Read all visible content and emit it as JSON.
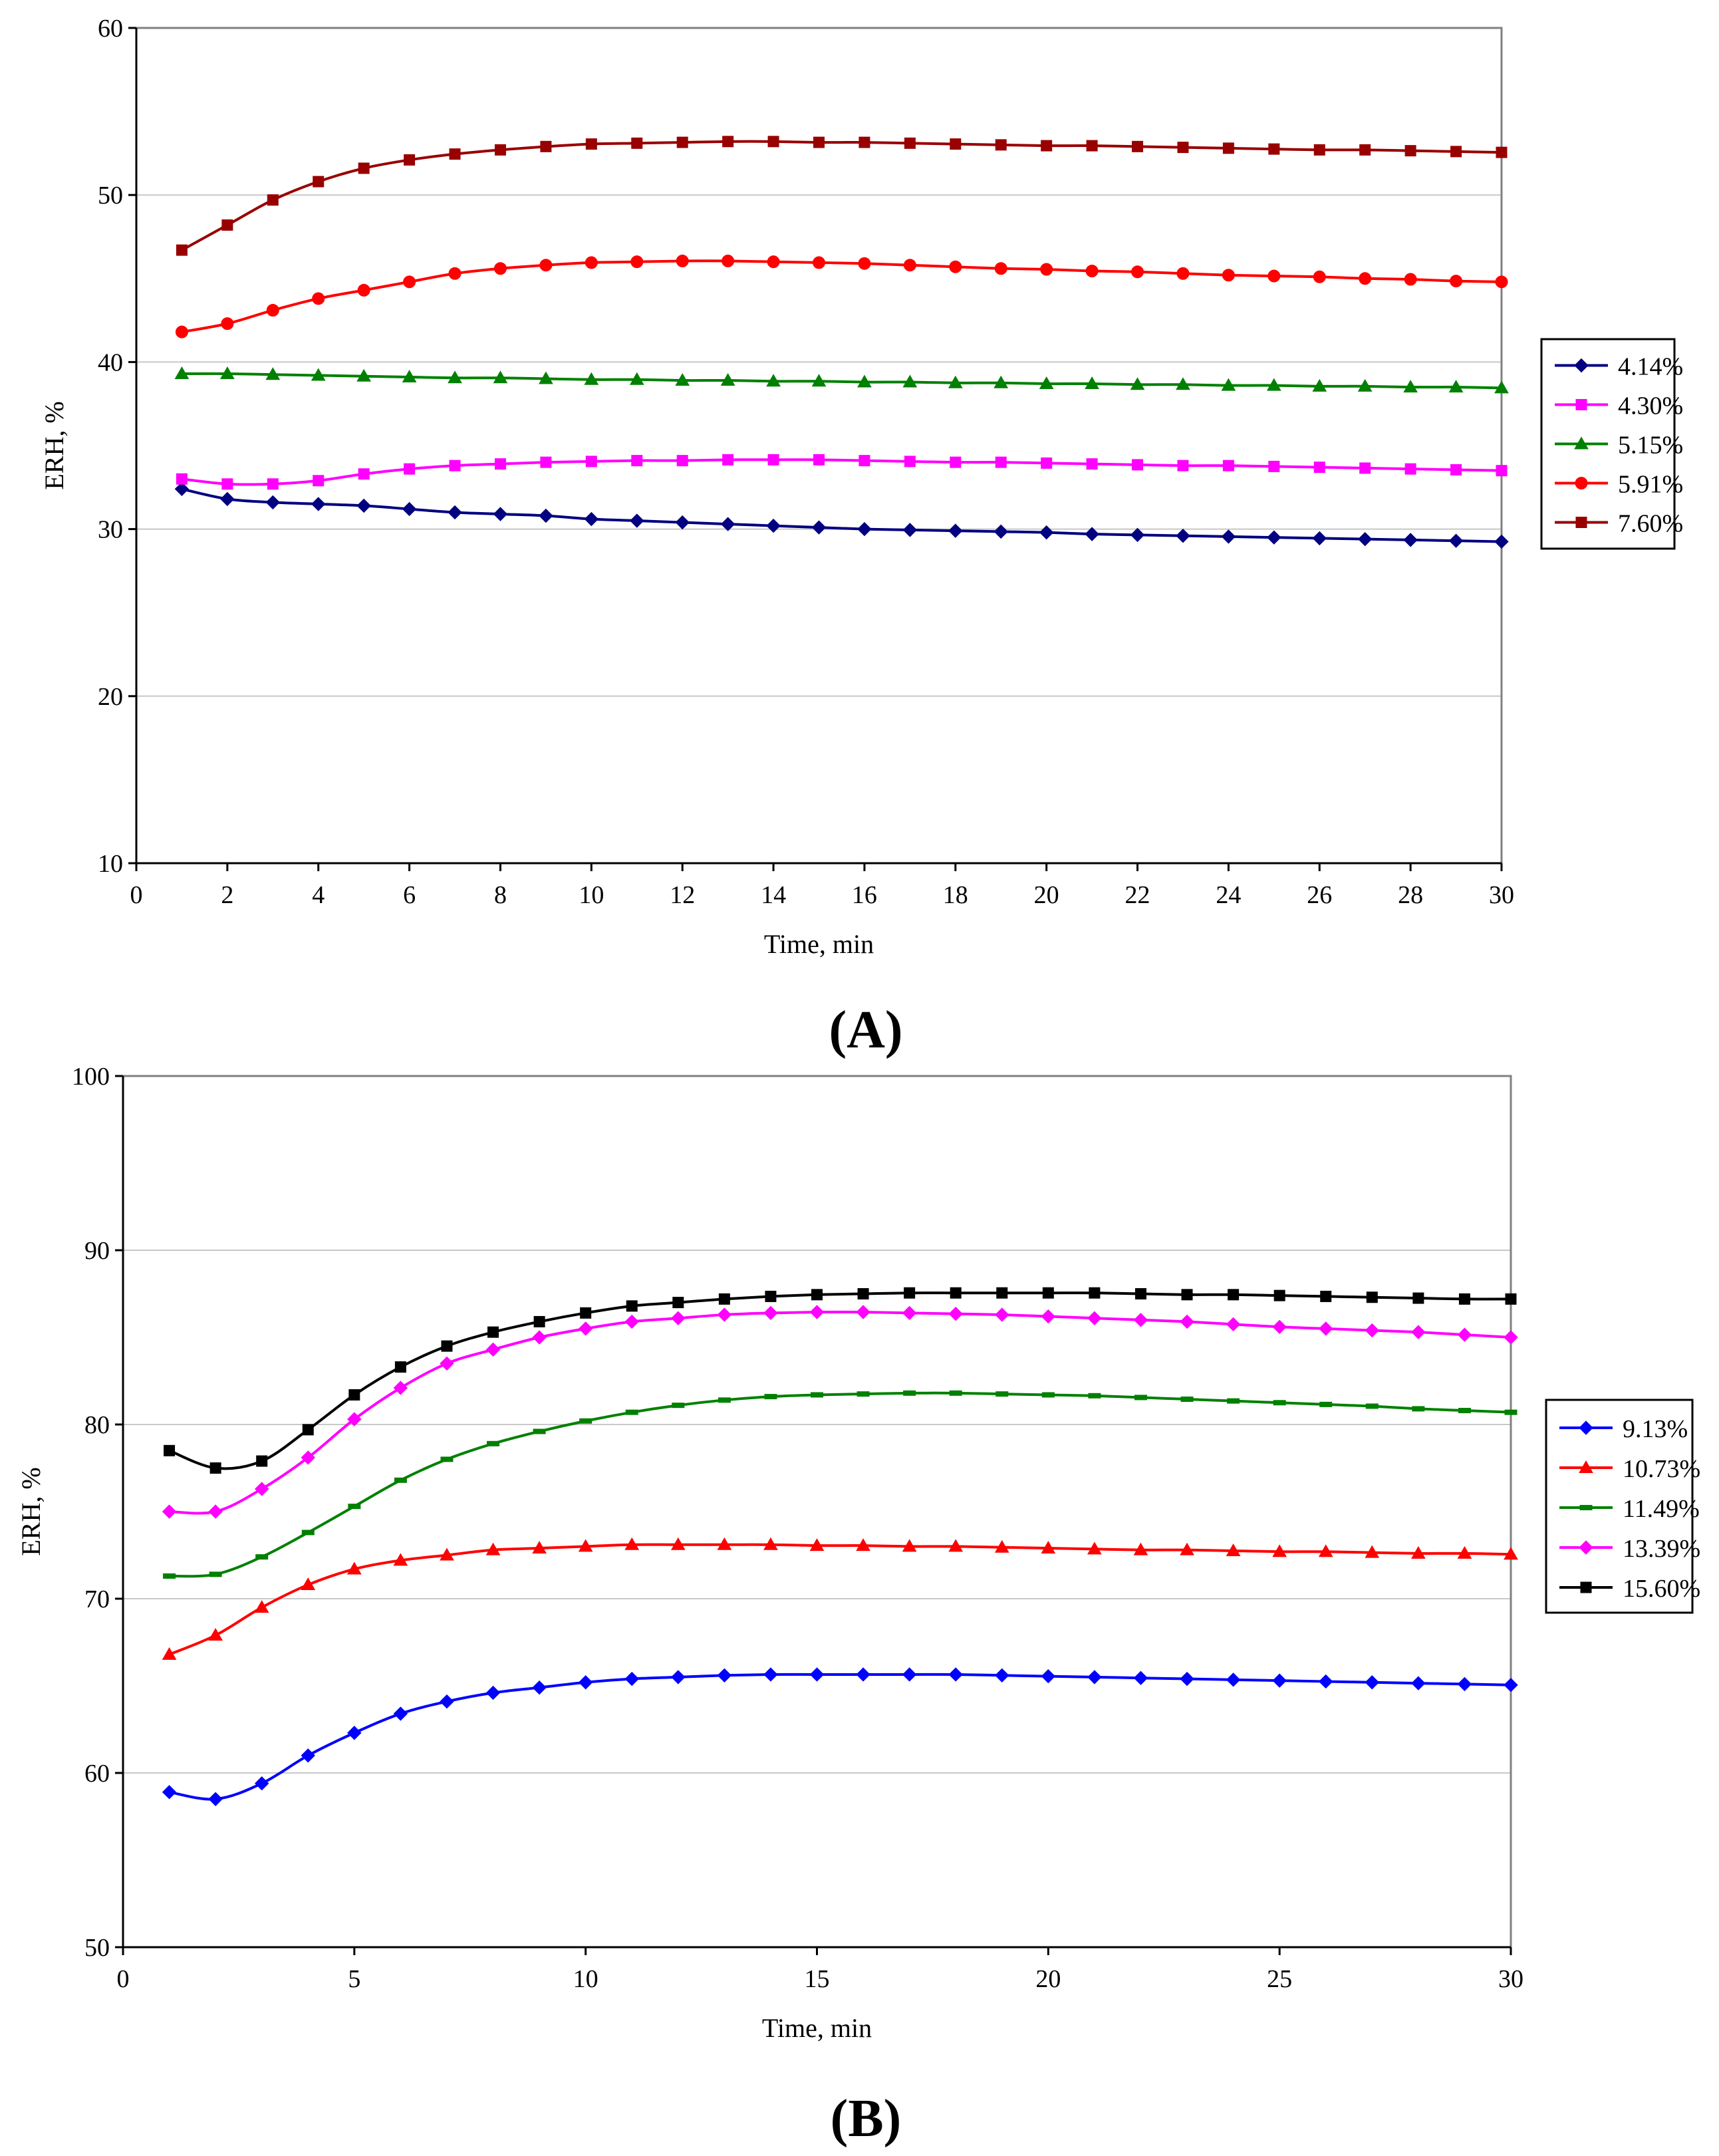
{
  "chart_data": [
    {
      "type": "line",
      "panel_label": "(A)",
      "title": "",
      "xlabel": "Time, min",
      "ylabel": "ERH, %",
      "xlim": [
        0,
        30
      ],
      "ylim": [
        10,
        60
      ],
      "xticks": [
        0,
        2,
        4,
        6,
        8,
        10,
        12,
        14,
        16,
        18,
        20,
        22,
        24,
        26,
        28,
        30
      ],
      "yticks": [
        10,
        20,
        30,
        40,
        50,
        60
      ],
      "grid": "horizontal",
      "legend_position": "right",
      "x": [
        1,
        2,
        3,
        4,
        5,
        6,
        7,
        8,
        9,
        10,
        11,
        12,
        13,
        14,
        15,
        16,
        17,
        18,
        19,
        20,
        21,
        22,
        23,
        24,
        25,
        26,
        27,
        28,
        29,
        30
      ],
      "series": [
        {
          "name": "4.14%",
          "color": "#000080",
          "marker": "diamond",
          "values": [
            32.4,
            31.8,
            31.6,
            31.5,
            31.4,
            31.2,
            31.0,
            30.9,
            30.8,
            30.6,
            30.5,
            30.4,
            30.3,
            30.2,
            30.1,
            30.0,
            29.95,
            29.9,
            29.85,
            29.8,
            29.7,
            29.65,
            29.6,
            29.55,
            29.5,
            29.45,
            29.4,
            29.35,
            29.3,
            29.25
          ]
        },
        {
          "name": "4.30%",
          "color": "#ff00ff",
          "marker": "square",
          "values": [
            33.0,
            32.7,
            32.7,
            32.9,
            33.3,
            33.6,
            33.8,
            33.9,
            34.0,
            34.05,
            34.1,
            34.1,
            34.15,
            34.15,
            34.15,
            34.1,
            34.05,
            34.0,
            34.0,
            33.95,
            33.9,
            33.85,
            33.8,
            33.8,
            33.75,
            33.7,
            33.65,
            33.6,
            33.55,
            33.5
          ]
        },
        {
          "name": "5.15%",
          "color": "#008000",
          "marker": "triangle",
          "values": [
            39.3,
            39.3,
            39.25,
            39.2,
            39.15,
            39.1,
            39.05,
            39.05,
            39.0,
            38.95,
            38.95,
            38.9,
            38.9,
            38.85,
            38.85,
            38.8,
            38.8,
            38.75,
            38.75,
            38.7,
            38.7,
            38.65,
            38.65,
            38.6,
            38.6,
            38.55,
            38.55,
            38.5,
            38.5,
            38.45
          ]
        },
        {
          "name": "5.91%",
          "color": "#ff0000",
          "marker": "circle",
          "values": [
            41.8,
            42.3,
            43.1,
            43.8,
            44.3,
            44.8,
            45.3,
            45.6,
            45.8,
            45.95,
            46.0,
            46.05,
            46.05,
            46.0,
            45.95,
            45.9,
            45.8,
            45.7,
            45.6,
            45.55,
            45.45,
            45.4,
            45.3,
            45.2,
            45.15,
            45.1,
            45.0,
            44.95,
            44.85,
            44.8
          ]
        },
        {
          "name": "7.60%",
          "color": "#990000",
          "marker": "square",
          "values": [
            46.7,
            48.2,
            49.7,
            50.8,
            51.6,
            52.1,
            52.45,
            52.7,
            52.9,
            53.05,
            53.1,
            53.15,
            53.2,
            53.2,
            53.15,
            53.15,
            53.1,
            53.05,
            53.0,
            52.95,
            52.95,
            52.9,
            52.85,
            52.8,
            52.75,
            52.7,
            52.7,
            52.65,
            52.6,
            52.55
          ]
        }
      ]
    },
    {
      "type": "line",
      "panel_label": "(B)",
      "title": "",
      "xlabel": "Time, min",
      "ylabel": "ERH, %",
      "xlim": [
        0,
        30
      ],
      "ylim": [
        50,
        100
      ],
      "xticks": [
        0,
        5,
        10,
        15,
        20,
        25,
        30
      ],
      "yticks": [
        50,
        60,
        70,
        80,
        90,
        100
      ],
      "grid": "horizontal",
      "legend_position": "right",
      "x": [
        1,
        2,
        3,
        4,
        5,
        6,
        7,
        8,
        9,
        10,
        11,
        12,
        13,
        14,
        15,
        16,
        17,
        18,
        19,
        20,
        21,
        22,
        23,
        24,
        25,
        26,
        27,
        28,
        29,
        30
      ],
      "series": [
        {
          "name": "9.13%",
          "color": "#0000ff",
          "marker": "diamond",
          "values": [
            58.9,
            58.5,
            59.4,
            61.0,
            62.3,
            63.4,
            64.1,
            64.6,
            64.9,
            65.2,
            65.4,
            65.5,
            65.6,
            65.65,
            65.65,
            65.65,
            65.65,
            65.65,
            65.6,
            65.55,
            65.5,
            65.45,
            65.4,
            65.35,
            65.3,
            65.25,
            65.2,
            65.15,
            65.1,
            65.05
          ]
        },
        {
          "name": "10.73%",
          "color": "#ff0000",
          "marker": "triangle",
          "values": [
            66.8,
            67.9,
            69.5,
            70.8,
            71.7,
            72.2,
            72.5,
            72.8,
            72.9,
            73.0,
            73.1,
            73.1,
            73.1,
            73.1,
            73.05,
            73.05,
            73.0,
            73.0,
            72.95,
            72.9,
            72.85,
            72.8,
            72.8,
            72.75,
            72.7,
            72.7,
            72.65,
            72.6,
            72.6,
            72.55
          ]
        },
        {
          "name": "11.49%",
          "color": "#008000",
          "marker": "dash",
          "values": [
            71.3,
            71.4,
            72.4,
            73.8,
            75.3,
            76.8,
            78.0,
            78.9,
            79.6,
            80.2,
            80.7,
            81.1,
            81.4,
            81.6,
            81.7,
            81.75,
            81.8,
            81.8,
            81.75,
            81.7,
            81.65,
            81.55,
            81.45,
            81.35,
            81.25,
            81.15,
            81.05,
            80.9,
            80.8,
            80.7
          ]
        },
        {
          "name": "13.39%",
          "color": "#ff00ff",
          "marker": "diamond",
          "values": [
            75.0,
            75.0,
            76.3,
            78.1,
            80.3,
            82.1,
            83.5,
            84.3,
            85.0,
            85.5,
            85.9,
            86.1,
            86.3,
            86.4,
            86.45,
            86.45,
            86.4,
            86.35,
            86.3,
            86.2,
            86.1,
            86.0,
            85.9,
            85.75,
            85.6,
            85.5,
            85.4,
            85.3,
            85.15,
            85.0
          ]
        },
        {
          "name": "15.60%",
          "color": "#000000",
          "marker": "square",
          "values": [
            78.5,
            77.5,
            77.9,
            79.7,
            81.7,
            83.3,
            84.5,
            85.3,
            85.9,
            86.4,
            86.8,
            87.0,
            87.2,
            87.35,
            87.45,
            87.5,
            87.55,
            87.55,
            87.55,
            87.55,
            87.55,
            87.5,
            87.45,
            87.45,
            87.4,
            87.35,
            87.3,
            87.25,
            87.2,
            87.2
          ]
        }
      ]
    }
  ]
}
